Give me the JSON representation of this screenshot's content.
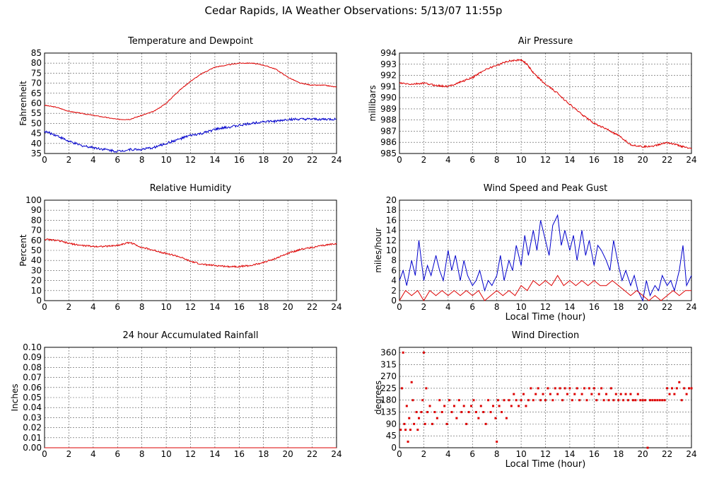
{
  "page": {
    "title": "Cedar Rapids, IA Weather Observations: 5/13/07 11:55p"
  },
  "colors": {
    "red": "#dd0000",
    "blue": "#0000cc",
    "grid": "#555555"
  },
  "chart_data": [
    {
      "id": "temp",
      "type": "line",
      "title": "Temperature and Dewpoint",
      "ylabel": "Fahrenheit",
      "xlabel": "",
      "xlim": [
        0,
        24
      ],
      "ylim": [
        35,
        85
      ],
      "xticks": [
        0,
        2,
        4,
        6,
        8,
        10,
        12,
        14,
        16,
        18,
        20,
        22,
        24
      ],
      "yticks": [
        35,
        40,
        45,
        50,
        55,
        60,
        65,
        70,
        75,
        80,
        85
      ],
      "series": [
        {
          "color": "#dd0000",
          "jitter": 0.2,
          "x": [
            0,
            1,
            2,
            3,
            4,
            5,
            6,
            7,
            8,
            9,
            10,
            11,
            12,
            13,
            14,
            15,
            16,
            17,
            18,
            19,
            20,
            21,
            22,
            23,
            24
          ],
          "y": [
            59,
            58,
            56,
            55,
            54,
            53,
            52,
            52,
            54,
            56,
            60,
            66,
            71,
            75,
            78,
            79,
            80,
            80,
            79,
            77,
            73,
            70,
            69,
            69,
            68
          ]
        },
        {
          "color": "#0000cc",
          "jitter": 0.6,
          "x": [
            0,
            1,
            2,
            3,
            4,
            5,
            6,
            7,
            8,
            9,
            10,
            11,
            12,
            13,
            14,
            15,
            16,
            17,
            18,
            19,
            20,
            21,
            22,
            23,
            24
          ],
          "y": [
            46,
            44,
            41,
            39,
            38,
            37,
            36,
            37,
            37,
            38,
            40,
            42,
            44,
            45,
            47,
            48,
            49,
            50,
            51,
            51,
            52,
            52,
            52,
            52,
            52
          ]
        }
      ]
    },
    {
      "id": "pressure",
      "type": "line",
      "title": "Air Pressure",
      "ylabel": "millibars",
      "xlabel": "",
      "xlim": [
        0,
        24
      ],
      "ylim": [
        985,
        994
      ],
      "xticks": [
        0,
        2,
        4,
        6,
        8,
        10,
        12,
        14,
        16,
        18,
        20,
        22,
        24
      ],
      "yticks": [
        985,
        986,
        987,
        988,
        989,
        990,
        991,
        992,
        993,
        994
      ],
      "series": [
        {
          "color": "#dd0000",
          "jitter": 0.08,
          "x": [
            0,
            1,
            2,
            3,
            4,
            5,
            6,
            7,
            8,
            9,
            10,
            10.5,
            11,
            12,
            13,
            14,
            15,
            16,
            17,
            18,
            19,
            20,
            21,
            22,
            23,
            24
          ],
          "y": [
            991.3,
            991.2,
            991.3,
            991.1,
            991.0,
            991.4,
            991.8,
            992.5,
            992.9,
            993.3,
            993.4,
            993.0,
            992.2,
            991.2,
            990.4,
            989.4,
            988.5,
            987.7,
            987.2,
            986.6,
            985.8,
            985.6,
            985.7,
            986.0,
            985.7,
            985.4
          ]
        }
      ]
    },
    {
      "id": "humidity",
      "type": "line",
      "title": "Relative Humidity",
      "ylabel": "Percent",
      "xlabel": "",
      "xlim": [
        0,
        24
      ],
      "ylim": [
        0,
        100
      ],
      "xticks": [
        0,
        2,
        4,
        6,
        8,
        10,
        12,
        14,
        16,
        18,
        20,
        22,
        24
      ],
      "yticks": [
        0,
        10,
        20,
        30,
        40,
        50,
        60,
        70,
        80,
        90,
        100
      ],
      "series": [
        {
          "color": "#dd0000",
          "jitter": 0.8,
          "x": [
            0,
            1,
            2,
            3,
            4,
            5,
            6,
            7,
            8,
            9,
            10,
            11,
            12,
            13,
            14,
            15,
            16,
            17,
            18,
            19,
            20,
            21,
            22,
            23,
            24
          ],
          "y": [
            61,
            60,
            57,
            55,
            54,
            54,
            55,
            58,
            53,
            50,
            47,
            44,
            39,
            36,
            35,
            34,
            34,
            35,
            38,
            42,
            47,
            51,
            53,
            55,
            57
          ]
        }
      ]
    },
    {
      "id": "wind",
      "type": "line",
      "title": "Wind Speed and Peak Gust",
      "ylabel": "miles/hour",
      "xlabel": "Local Time (hour)",
      "xlim": [
        0,
        24
      ],
      "ylim": [
        0,
        20
      ],
      "xticks": [
        0,
        2,
        4,
        6,
        8,
        10,
        12,
        14,
        16,
        18,
        20,
        22,
        24
      ],
      "yticks": [
        0,
        2,
        4,
        6,
        8,
        10,
        12,
        14,
        16,
        18,
        20
      ],
      "series": [
        {
          "color": "#0000cc",
          "jitter": 0,
          "x": [
            0,
            0.3,
            0.6,
            1,
            1.3,
            1.6,
            2,
            2.3,
            2.6,
            3,
            3.3,
            3.6,
            4,
            4.3,
            4.6,
            5,
            5.3,
            5.6,
            6,
            6.3,
            6.6,
            7,
            7.3,
            7.6,
            8,
            8.3,
            8.6,
            9,
            9.3,
            9.6,
            10,
            10.3,
            10.6,
            11,
            11.3,
            11.6,
            12,
            12.3,
            12.6,
            13,
            13.3,
            13.6,
            14,
            14.3,
            14.6,
            15,
            15.3,
            15.6,
            16,
            16.3,
            16.6,
            17,
            17.3,
            17.6,
            18,
            18.3,
            18.6,
            19,
            19.3,
            19.6,
            20,
            20.3,
            20.6,
            21,
            21.3,
            21.6,
            22,
            22.3,
            22.6,
            23,
            23.3,
            23.6,
            24
          ],
          "y": [
            4,
            6,
            3,
            8,
            5,
            12,
            4,
            7,
            5,
            9,
            6,
            4,
            10,
            6,
            9,
            4,
            8,
            5,
            3,
            4,
            6,
            2,
            4,
            3,
            5,
            9,
            4,
            8,
            6,
            11,
            7,
            13,
            9,
            14,
            10,
            16,
            12,
            9,
            15,
            17,
            11,
            14,
            10,
            13,
            8,
            14,
            9,
            12,
            7,
            11,
            10,
            8,
            6,
            12,
            7,
            4,
            6,
            3,
            5,
            2,
            0,
            4,
            1,
            3,
            2,
            5,
            3,
            4,
            2,
            6,
            11,
            3,
            5
          ]
        },
        {
          "color": "#dd0000",
          "jitter": 0,
          "x": [
            0,
            0.5,
            1,
            1.5,
            2,
            2.5,
            3,
            3.5,
            4,
            4.5,
            5,
            5.5,
            6,
            6.5,
            7,
            7.5,
            8,
            8.5,
            9,
            9.5,
            10,
            10.5,
            11,
            11.5,
            12,
            12.5,
            13,
            13.5,
            14,
            14.5,
            15,
            15.5,
            16,
            16.5,
            17,
            17.5,
            18,
            18.5,
            19,
            19.5,
            20,
            20.5,
            21,
            21.5,
            22,
            22.5,
            23,
            23.5,
            24
          ],
          "y": [
            0,
            2,
            1,
            2,
            0,
            2,
            1,
            2,
            1,
            2,
            1,
            2,
            1,
            2,
            0,
            1,
            2,
            1,
            2,
            1,
            3,
            2,
            4,
            3,
            4,
            3,
            5,
            3,
            4,
            3,
            4,
            3,
            4,
            3,
            3,
            4,
            3,
            2,
            1,
            2,
            1,
            0,
            1,
            0,
            1,
            2,
            1,
            2,
            2
          ]
        }
      ]
    },
    {
      "id": "rain",
      "type": "line",
      "title": "24 hour Accumulated Rainfall",
      "ylabel": "Inches",
      "xlabel": "",
      "xlim": [
        0,
        24
      ],
      "ylim": [
        0,
        0.1
      ],
      "xticks": [
        0,
        2,
        4,
        6,
        8,
        10,
        12,
        14,
        16,
        18,
        20,
        22,
        24
      ],
      "yticks": [
        "0.00",
        "0.01",
        "0.02",
        "0.03",
        "0.04",
        "0.05",
        "0.06",
        "0.07",
        "0.08",
        "0.09",
        "0.10"
      ],
      "series": [
        {
          "color": "#dd0000",
          "jitter": 0,
          "x": [
            0,
            24
          ],
          "y": [
            0,
            0
          ]
        }
      ]
    },
    {
      "id": "winddir",
      "type": "scatter",
      "title": "Wind Direction",
      "ylabel": "degrees",
      "xlabel": "Local Time (hour)",
      "xlim": [
        0,
        24
      ],
      "ylim": [
        0,
        380
      ],
      "xticks": [
        0,
        2,
        4,
        6,
        8,
        10,
        12,
        14,
        16,
        18,
        20,
        22,
        24
      ],
      "yticks": [
        0,
        45,
        90,
        135,
        180,
        225,
        270,
        315,
        360
      ],
      "series": [
        {
          "color": "#dd0000",
          "x": [
            0.1,
            0.2,
            0.3,
            0.4,
            0.5,
            0.6,
            0.7,
            0.8,
            0.9,
            1.0,
            1.1,
            1.2,
            1.4,
            1.5,
            1.6,
            1.8,
            1.9,
            2.0,
            2.1,
            2.2,
            2.3,
            2.5,
            2.7,
            2.9,
            3.1,
            3.3,
            3.5,
            3.7,
            3.9,
            4.1,
            4.3,
            4.5,
            4.7,
            4.9,
            5.1,
            5.3,
            5.5,
            5.7,
            5.9,
            6.1,
            6.3,
            6.5,
            6.7,
            6.9,
            7.1,
            7.3,
            7.5,
            7.7,
            7.9,
            8.0,
            8.1,
            8.2,
            8.4,
            8.6,
            8.8,
            9.0,
            9.2,
            9.4,
            9.6,
            9.8,
            10.0,
            10.2,
            10.4,
            10.6,
            10.8,
            11.0,
            11.2,
            11.4,
            11.6,
            11.8,
            12.0,
            12.2,
            12.4,
            12.6,
            12.8,
            13.0,
            13.2,
            13.4,
            13.6,
            13.8,
            14.0,
            14.2,
            14.4,
            14.6,
            14.8,
            15.0,
            15.2,
            15.4,
            15.6,
            15.8,
            16.0,
            16.2,
            16.4,
            16.6,
            16.8,
            17.0,
            17.2,
            17.4,
            17.6,
            17.8,
            18.0,
            18.2,
            18.4,
            18.6,
            18.8,
            19.0,
            19.2,
            19.4,
            19.6,
            19.8,
            20.0,
            20.2,
            20.4,
            20.6,
            20.8,
            21.0,
            21.2,
            21.4,
            21.6,
            21.8,
            22.0,
            22.2,
            22.4,
            22.6,
            22.8,
            23.0,
            23.2,
            23.4,
            23.6,
            23.8,
            24.0
          ],
          "y": [
            68,
            225,
            360,
            90,
            68,
            158,
            23,
            112,
            68,
            248,
            180,
            90,
            135,
            68,
            112,
            135,
            180,
            360,
            90,
            225,
            135,
            158,
            90,
            135,
            112,
            180,
            135,
            158,
            90,
            180,
            135,
            158,
            112,
            180,
            135,
            158,
            90,
            135,
            158,
            180,
            135,
            112,
            158,
            135,
            90,
            180,
            135,
            158,
            112,
            23,
            180,
            158,
            135,
            180,
            112,
            180,
            158,
            203,
            180,
            158,
            180,
            203,
            158,
            180,
            225,
            180,
            203,
            225,
            180,
            203,
            180,
            225,
            203,
            180,
            225,
            203,
            225,
            180,
            225,
            203,
            225,
            180,
            203,
            225,
            180,
            203,
            225,
            180,
            225,
            203,
            225,
            180,
            203,
            225,
            180,
            203,
            180,
            225,
            180,
            203,
            180,
            203,
            180,
            203,
            180,
            203,
            180,
            180,
            203,
            180,
            180,
            180,
            0,
            180,
            180,
            180,
            180,
            180,
            180,
            180,
            225,
            203,
            225,
            203,
            225,
            248,
            180,
            225,
            203,
            225,
            225
          ]
        }
      ]
    }
  ]
}
